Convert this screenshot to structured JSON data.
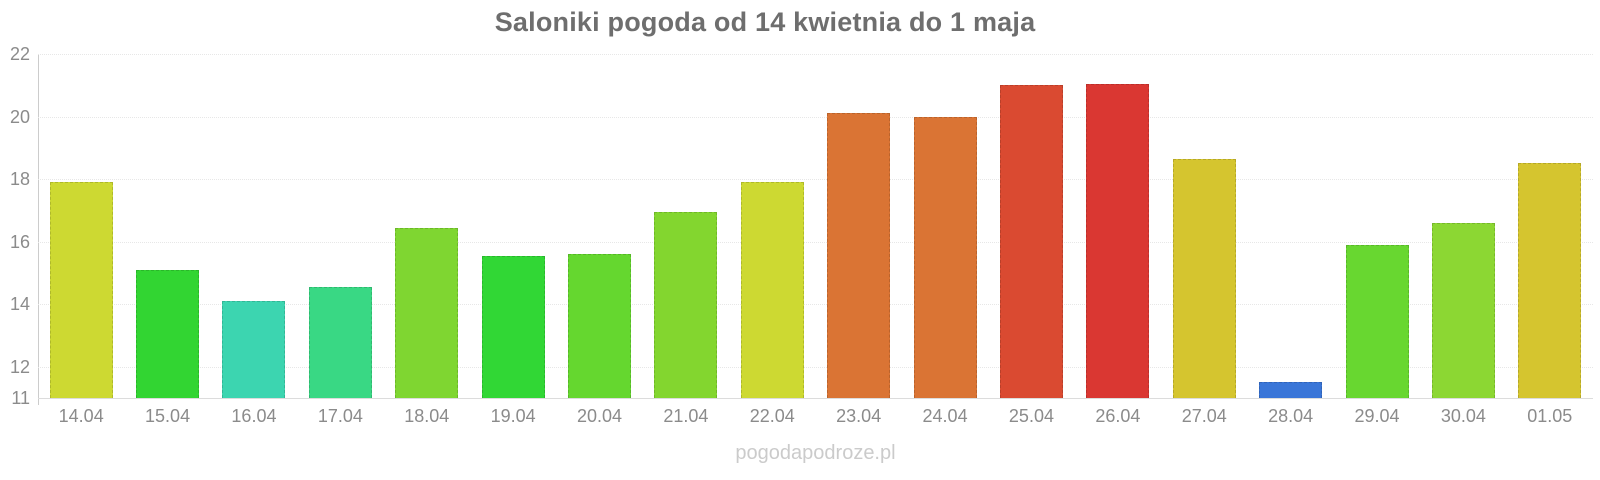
{
  "chart_data": {
    "type": "bar",
    "title": "Saloniki pogoda od 14 kwietnia do 1 maja",
    "categories": [
      "14.04",
      "15.04",
      "16.04",
      "17.04",
      "18.04",
      "19.04",
      "20.04",
      "21.04",
      "22.04",
      "23.04",
      "24.04",
      "25.04",
      "26.04",
      "27.04",
      "28.04",
      "29.04",
      "30.04",
      "01.05"
    ],
    "values": [
      17.9,
      15.1,
      14.1,
      14.55,
      16.45,
      15.55,
      15.6,
      16.95,
      17.9,
      20.1,
      20.0,
      21.0,
      21.05,
      18.65,
      11.5,
      15.9,
      16.6,
      18.5
    ],
    "bar_colors": [
      "#cdd932",
      "#32d532",
      "#3cd5b0",
      "#39d884",
      "#7fd631",
      "#31d735",
      "#65d72f",
      "#83d62f",
      "#cdd932",
      "#da7434",
      "#da7434",
      "#da4a31",
      "#da3732",
      "#d5c52f",
      "#3a76d8",
      "#68d730",
      "#8cd733",
      "#d5c52f"
    ],
    "xlabel": "",
    "ylabel": "",
    "ylim": [
      11,
      22
    ],
    "yticks": [
      11,
      12,
      14,
      16,
      18,
      20,
      22
    ],
    "grid": "horizontal-dotted",
    "legend": "none"
  },
  "watermark": "pogodapodroze.pl",
  "colors": {
    "title": "#6e6e6e",
    "axis_label": "#8b8b8b",
    "gridline": "#e7e7e7",
    "baseline": "#dcdcdc",
    "axis_line": "#cccccc",
    "watermark": "#cbcbcb",
    "background": "#ffffff"
  }
}
